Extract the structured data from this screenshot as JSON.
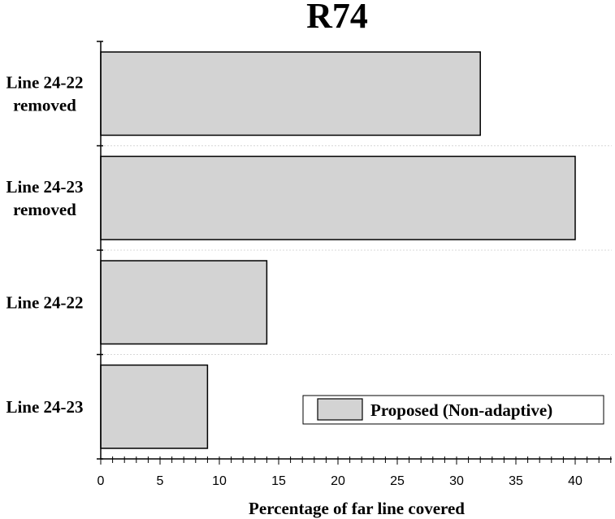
{
  "chart_data": {
    "type": "bar",
    "orientation": "horizontal",
    "title": "R74",
    "xlabel": "Percentage of far line covered",
    "ylabel": "",
    "xlim": [
      0,
      43
    ],
    "x_ticks": [
      0,
      5,
      10,
      15,
      20,
      25,
      30,
      35,
      40
    ],
    "categories": [
      [
        "Line 24-22",
        "removed"
      ],
      [
        "Line 24-23",
        "removed"
      ],
      [
        "Line 24-22"
      ],
      [
        "Line 24-23"
      ]
    ],
    "series": [
      {
        "name": "Proposed (Non-adaptive)",
        "values": [
          32,
          40,
          14,
          9
        ],
        "color": "#d3d3d3",
        "edge_color": "#000000"
      }
    ],
    "grid": "horizontal-dotted",
    "legend_position": "bottom-right"
  }
}
